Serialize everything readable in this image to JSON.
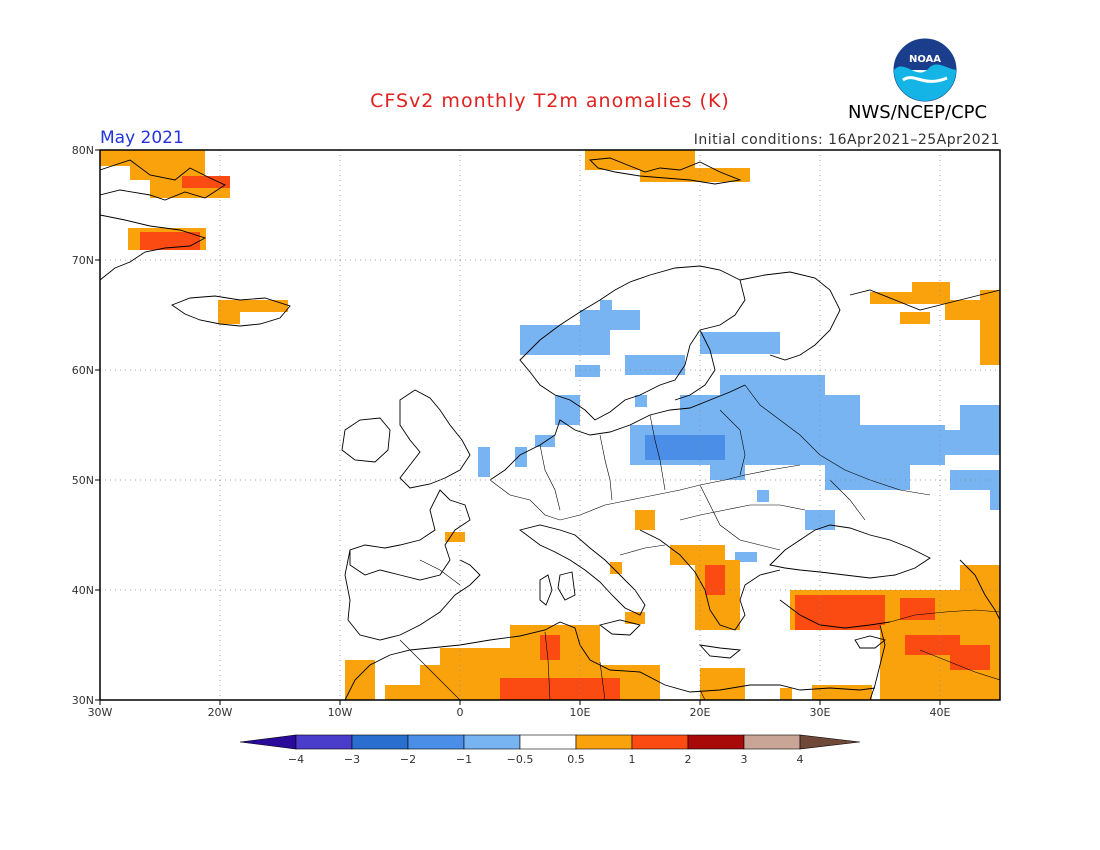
{
  "header": {
    "title": "CFSv2 monthly T2m anomalies (K)",
    "agency": "NWS/NCEP/CPC",
    "logo_text": "NOAA",
    "month": "May 2021",
    "initial_conditions": "Initial conditions: 16Apr2021–25Apr2021"
  },
  "map": {
    "lon_range": [
      -30,
      45
    ],
    "lat_range": [
      30,
      80
    ],
    "lat_labels": [
      "80N",
      "70N",
      "60N",
      "50N",
      "40N",
      "30N"
    ],
    "lon_labels": [
      "30W",
      "20W",
      "10W",
      "0",
      "10E",
      "20E",
      "30E",
      "40E"
    ],
    "gridlines": true
  },
  "legend": {
    "ticks": [
      "−4",
      "−3",
      "−2",
      "−1",
      "−0.5",
      "0.5",
      "1",
      "2",
      "3",
      "4"
    ],
    "colors": [
      "#2a0a9a",
      "#4a3dcc",
      "#2a6fd0",
      "#4a8ee8",
      "#78b4f2",
      "#ffffff",
      "#f9a20c",
      "#fc4b12",
      "#a80a0a",
      "#c8a596",
      "#704838"
    ]
  },
  "anomaly_colors": {
    "cool": "#78b4f2",
    "cooler": "#4a8ee8",
    "warm": "#f9a20c",
    "warmer": "#fc4b12"
  }
}
